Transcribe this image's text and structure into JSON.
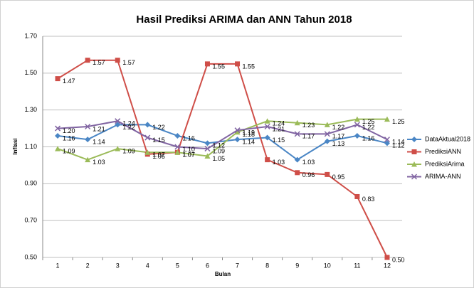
{
  "chart_data": {
    "type": "line",
    "title": "Hasil Prediksi ARIMA dan ANN Tahun 2018",
    "x_label": "Bulan",
    "y_label": "Inflasi",
    "categories": [
      "1",
      "2",
      "3",
      "4",
      "5",
      "6",
      "7",
      "8",
      "9",
      "10",
      "11",
      "12"
    ],
    "ylim": [
      0.5,
      1.7
    ],
    "yticks": [
      {
        "value": 0.5,
        "label": "0.50"
      },
      {
        "value": 0.7,
        "label": "0.70"
      },
      {
        "value": 0.9,
        "label": "0.90"
      },
      {
        "value": 1.1,
        "label": "1.10"
      },
      {
        "value": 1.3,
        "label": "1.30"
      },
      {
        "value": 1.5,
        "label": "1.50"
      },
      {
        "value": 1.7,
        "label": "1.70"
      }
    ],
    "grid": true,
    "legend": "right",
    "series": [
      {
        "name": "DataAktual2018",
        "color": "#4a86c5",
        "marker": "diamond",
        "values": [
          1.16,
          1.14,
          1.22,
          1.22,
          1.16,
          1.12,
          1.14,
          1.15,
          1.03,
          1.13,
          1.16,
          1.12
        ],
        "value_labels": [
          "1.16",
          "1.14",
          "1.22",
          "1.22",
          "1.16",
          "1.12",
          "1.14",
          "1.15",
          "1.03",
          "1.13",
          "1.16",
          "1.12"
        ]
      },
      {
        "name": "PrediksiANN",
        "color": "#cf4e48",
        "marker": "square",
        "values": [
          1.47,
          1.57,
          1.57,
          1.06,
          1.07,
          1.55,
          1.55,
          1.03,
          0.96,
          0.95,
          0.83,
          0.5
        ],
        "value_labels": [
          "1.47",
          "1.57",
          "1.57",
          "1.06",
          "1.07",
          "1.55",
          "1.55",
          "1.03",
          "0.96",
          "0.95",
          "0.83",
          "0.50"
        ]
      },
      {
        "name": "PrediksiArima",
        "color": "#9bbb59",
        "marker": "triangle",
        "values": [
          1.09,
          1.03,
          1.09,
          1.07,
          1.07,
          1.05,
          1.18,
          1.24,
          1.23,
          1.22,
          1.25,
          1.25
        ],
        "value_labels": [
          "1.09",
          "1.03",
          "1.09",
          "1.07",
          "1.07",
          "1.05",
          "1.18",
          "1.24",
          "1.23",
          "1.22",
          "1.25",
          "1.25"
        ]
      },
      {
        "name": "ARIMA-ANN",
        "color": "#8064a2",
        "marker": "x",
        "values": [
          1.2,
          1.21,
          1.24,
          1.15,
          1.1,
          1.09,
          1.19,
          1.21,
          1.17,
          1.17,
          1.22,
          1.14
        ],
        "value_labels": [
          "1.20",
          "1.21",
          "1.24",
          "1.15",
          "1.10",
          "1.09",
          "1.19",
          "1.21",
          "1.17",
          "1.17",
          "1.22",
          "1.14"
        ]
      }
    ]
  }
}
